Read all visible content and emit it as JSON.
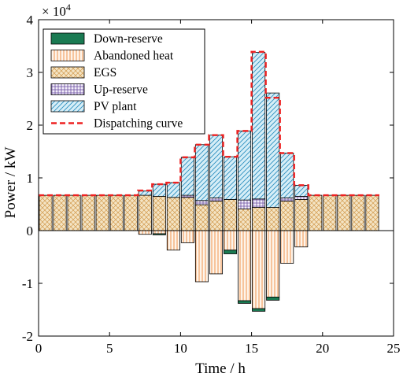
{
  "chart_data": {
    "type": "bar",
    "stacked": true,
    "xlabel": "Time / h",
    "ylabel": "Power / kW",
    "y_exponent_label": "× 10",
    "y_exponent_power": "4",
    "xlim": [
      0,
      25
    ],
    "ylim": [
      -2,
      4
    ],
    "y_scale_multiplier": 10000,
    "x_ticks": [
      0,
      5,
      10,
      15,
      20,
      25
    ],
    "y_ticks": [
      -2,
      -1,
      0,
      1,
      2,
      3,
      4
    ],
    "x_tick_labels": [
      "0",
      "5",
      "10",
      "15",
      "20",
      "25"
    ],
    "y_tick_labels": [
      "-2",
      "-1",
      "0",
      "1",
      "2",
      "3",
      "4"
    ],
    "legend_position": "top-left",
    "grid": false,
    "x": [
      0.5,
      1.5,
      2.5,
      3.5,
      4.5,
      5.5,
      6.5,
      7.5,
      8.5,
      9.5,
      10.5,
      11.5,
      12.5,
      13.5,
      14.5,
      15.5,
      16.5,
      17.5,
      18.5,
      19.5,
      20.5,
      21.5,
      22.5,
      23.5
    ],
    "series": [
      {
        "name": "Down-reserve",
        "key": "down",
        "color": "#1a7a52",
        "values": [
          0,
          0,
          0,
          0,
          0,
          0,
          0,
          0,
          -0.02,
          0,
          0,
          0,
          0,
          -0.07,
          -0.05,
          -0.05,
          -0.06,
          0,
          0,
          0,
          0,
          0,
          0,
          0
        ]
      },
      {
        "name": "Abandoned heat",
        "key": "abandoned",
        "color": "#f2a66a",
        "values": [
          0,
          0,
          0,
          0,
          0,
          0,
          0,
          -0.07,
          -0.06,
          -0.37,
          -0.23,
          -0.97,
          -0.82,
          -0.37,
          -1.33,
          -1.48,
          -1.26,
          -0.62,
          -0.31,
          0,
          0,
          0,
          0,
          0
        ]
      },
      {
        "name": "EGS",
        "key": "egs",
        "color": "#e8c58c",
        "values": [
          0.67,
          0.67,
          0.67,
          0.67,
          0.67,
          0.67,
          0.67,
          0.67,
          0.65,
          0.63,
          0.63,
          0.49,
          0.56,
          0.59,
          0.41,
          0.44,
          0.44,
          0.56,
          0.59,
          0.67,
          0.67,
          0.67,
          0.67,
          0.67
        ]
      },
      {
        "name": "Up-reserve",
        "key": "upres",
        "color": "#8a6fb8",
        "values": [
          0,
          0,
          0,
          0,
          0,
          0,
          0,
          0,
          0,
          0,
          0.04,
          0.08,
          0.06,
          0,
          0.17,
          0.16,
          0,
          0.06,
          0.06,
          0,
          0,
          0,
          0,
          0
        ]
      },
      {
        "name": "PV plant",
        "key": "pv",
        "color": "#5fb7d8",
        "values": [
          0,
          0,
          0,
          0,
          0,
          0,
          0,
          0.08,
          0.23,
          0.28,
          0.72,
          1.06,
          1.19,
          0.81,
          1.31,
          2.78,
          2.17,
          0.85,
          0.21,
          0,
          0,
          0,
          0,
          0
        ]
      }
    ],
    "dispatching_curve": {
      "name": "Dispatching curve",
      "color": "#ee2222",
      "values": [
        0.67,
        0.67,
        0.67,
        0.67,
        0.67,
        0.67,
        0.67,
        0.76,
        0.88,
        0.91,
        1.39,
        1.63,
        1.81,
        1.4,
        1.89,
        3.39,
        2.52,
        1.47,
        0.86,
        0.67,
        0.67,
        0.67,
        0.67,
        0.67
      ]
    }
  }
}
